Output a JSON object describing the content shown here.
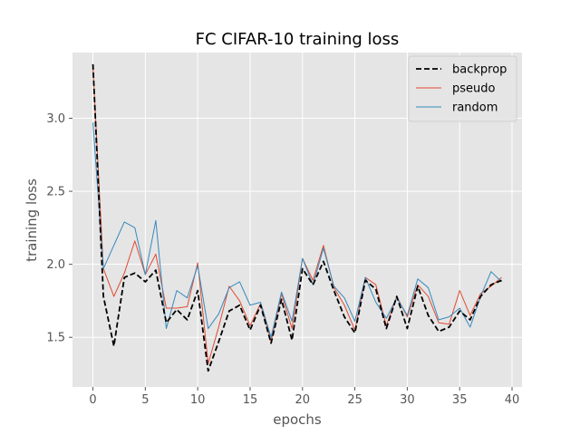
{
  "chart_data": {
    "type": "line",
    "title": "FC CIFAR-10 training loss",
    "xlabel": "epochs",
    "ylabel": "training loss",
    "xlim": [
      -1.95,
      40.95
    ],
    "ylim": [
      1.16,
      3.45
    ],
    "xticks": [
      0,
      5,
      10,
      15,
      20,
      25,
      30,
      35,
      40
    ],
    "yticks": [
      1.5,
      2.0,
      2.5,
      3.0
    ],
    "grid": true,
    "legend_position": "top-right",
    "x": [
      0,
      1,
      2,
      3,
      4,
      5,
      6,
      7,
      8,
      9,
      10,
      11,
      12,
      13,
      14,
      15,
      16,
      17,
      18,
      19,
      20,
      21,
      22,
      23,
      24,
      25,
      26,
      27,
      28,
      29,
      30,
      31,
      32,
      33,
      34,
      35,
      36,
      37,
      38,
      39
    ],
    "series": [
      {
        "name": "backprop",
        "color": "#000000",
        "dashed": true,
        "values": [
          3.37,
          1.78,
          1.44,
          1.91,
          1.94,
          1.88,
          1.96,
          1.6,
          1.69,
          1.62,
          1.82,
          1.27,
          1.47,
          1.68,
          1.72,
          1.55,
          1.72,
          1.46,
          1.76,
          1.48,
          1.97,
          1.86,
          2.02,
          1.82,
          1.64,
          1.53,
          1.89,
          1.83,
          1.56,
          1.78,
          1.56,
          1.85,
          1.65,
          1.54,
          1.57,
          1.68,
          1.62,
          1.78,
          1.86,
          1.89
        ]
      },
      {
        "name": "pseudo",
        "color": "#e24a33",
        "dashed": false,
        "values": [
          3.35,
          1.97,
          1.78,
          1.94,
          2.16,
          1.93,
          2.07,
          1.7,
          1.7,
          1.71,
          2.01,
          1.32,
          1.57,
          1.85,
          1.75,
          1.58,
          1.73,
          1.47,
          1.8,
          1.56,
          2.04,
          1.89,
          2.13,
          1.84,
          1.72,
          1.55,
          1.91,
          1.86,
          1.58,
          1.78,
          1.64,
          1.86,
          1.78,
          1.6,
          1.59,
          1.82,
          1.65,
          1.8,
          1.85,
          1.91
        ]
      },
      {
        "name": "random",
        "color": "#348abd",
        "dashed": false,
        "values": [
          2.97,
          1.97,
          2.13,
          2.29,
          2.25,
          1.93,
          2.3,
          1.56,
          1.82,
          1.77,
          1.99,
          1.56,
          1.66,
          1.84,
          1.88,
          1.72,
          1.74,
          1.5,
          1.81,
          1.61,
          2.04,
          1.86,
          2.11,
          1.85,
          1.77,
          1.61,
          1.91,
          1.74,
          1.63,
          1.77,
          1.65,
          1.9,
          1.84,
          1.62,
          1.64,
          1.7,
          1.57,
          1.78,
          1.95,
          1.88
        ]
      }
    ]
  }
}
